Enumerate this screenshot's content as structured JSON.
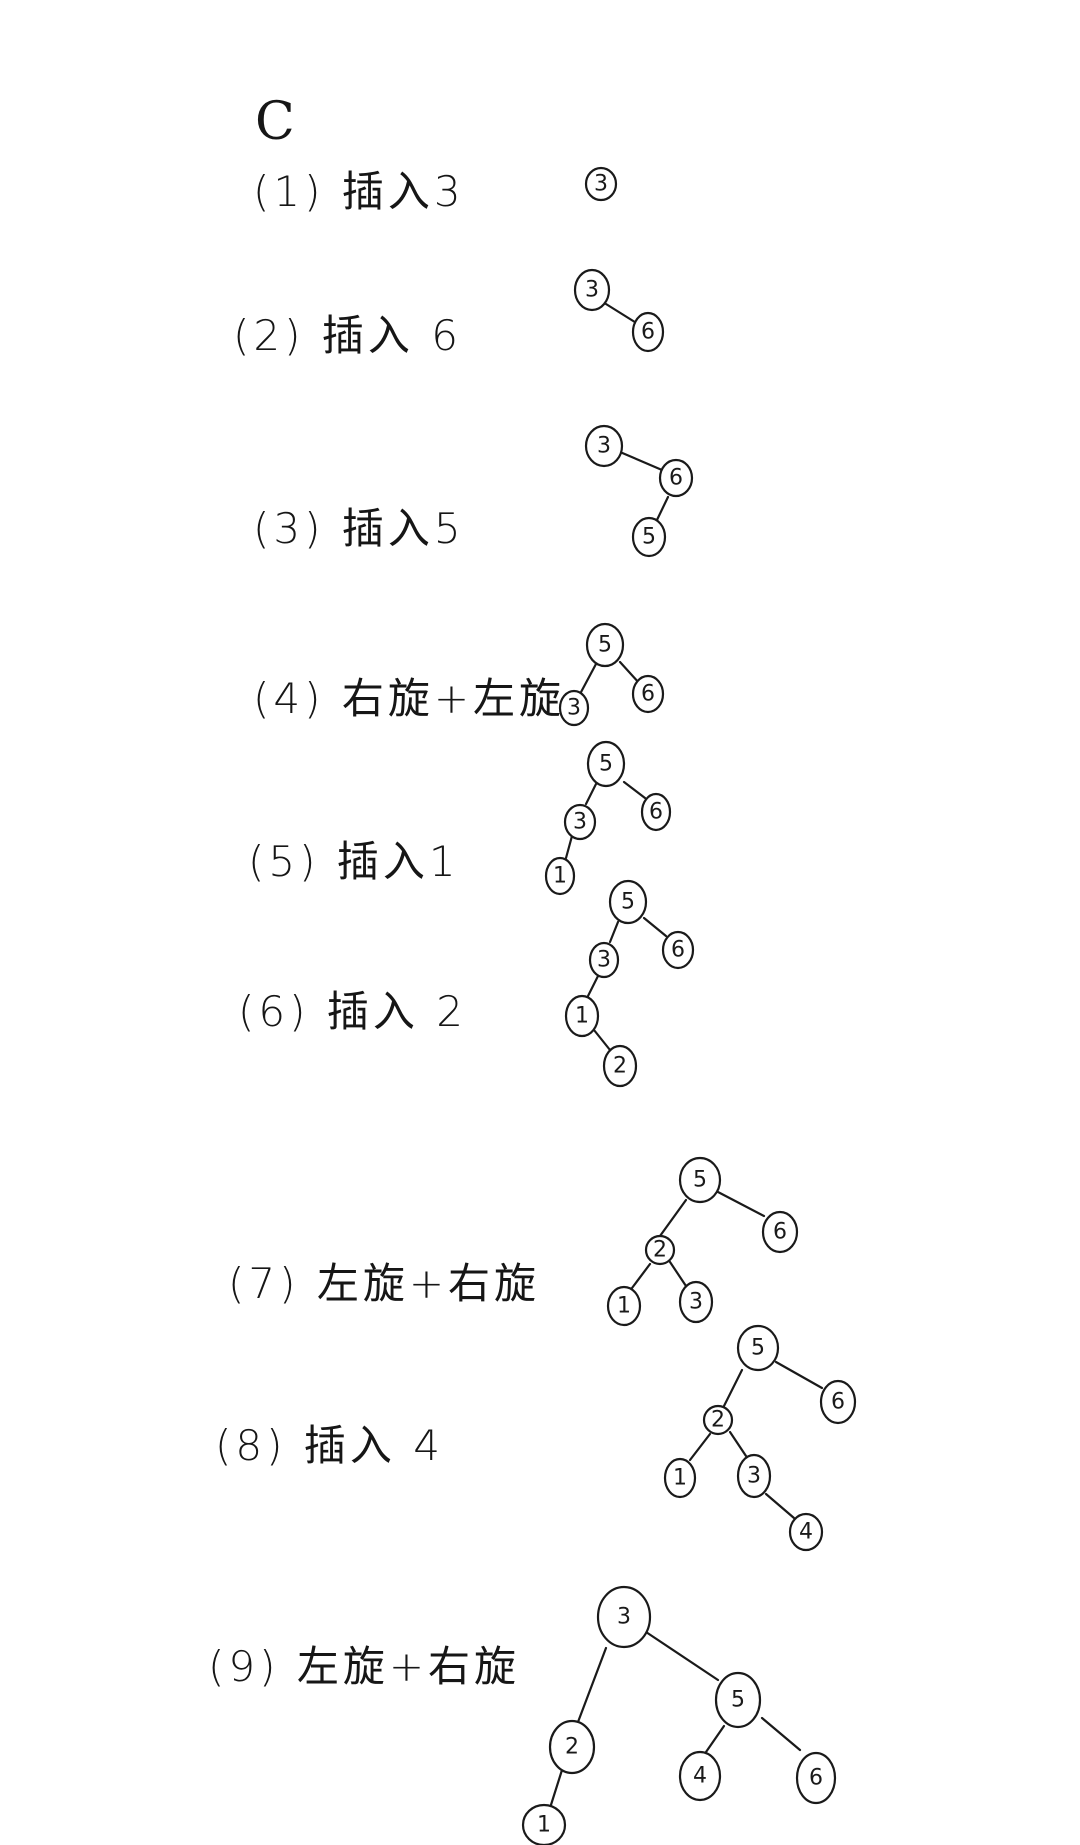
{
  "heading": "C",
  "steps": [
    {
      "label": "(1) 插入3",
      "nodes": [
        "3"
      ]
    },
    {
      "label": "(2) 插入 6",
      "nodes": [
        "3",
        "6"
      ]
    },
    {
      "label": "(3) 插入5",
      "nodes": [
        "3",
        "6",
        "5"
      ]
    },
    {
      "label": "(4) 右旋+左旋",
      "nodes": [
        "5",
        "3",
        "6"
      ]
    },
    {
      "label": "(5) 插入1",
      "nodes": [
        "5",
        "3",
        "6",
        "1"
      ]
    },
    {
      "label": "(6) 插入 2",
      "nodes": [
        "5",
        "3",
        "6",
        "1",
        "2"
      ]
    },
    {
      "label": "(7) 左旋+右旋",
      "nodes": [
        "5",
        "2",
        "6",
        "1",
        "3"
      ]
    },
    {
      "label": "(8) 插入 4",
      "nodes": [
        "5",
        "2",
        "6",
        "1",
        "3",
        "4"
      ]
    },
    {
      "label": "(9) 左旋+右旋",
      "nodes": [
        "3",
        "2",
        "5",
        "1",
        "4",
        "6"
      ]
    }
  ]
}
